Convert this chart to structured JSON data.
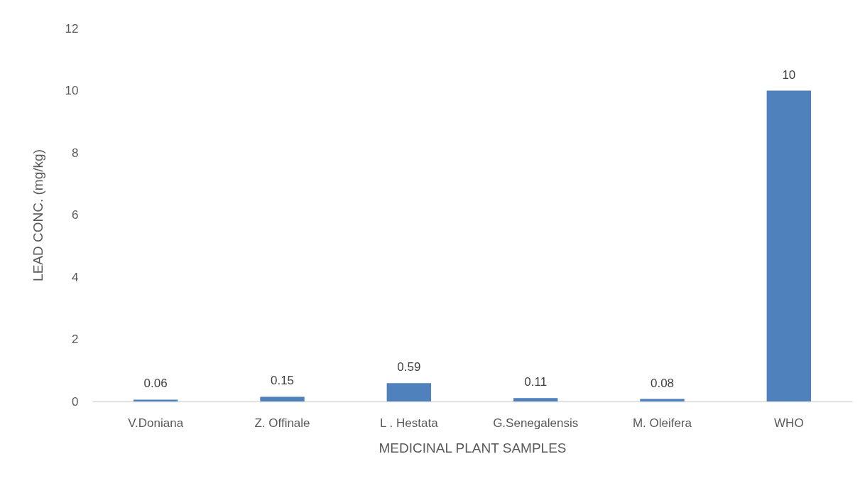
{
  "chart_data": {
    "type": "bar",
    "xlabel": "MEDICINAL PLANT SAMPLES",
    "ylabel": "LEAD CONC. (mg/kg)",
    "categories": [
      "V.Doniana",
      "Z. Offinale",
      "L . Hestata",
      "G.Senegalensis",
      "M. Oleifera",
      "WHO"
    ],
    "series": [
      {
        "color": "#4f81bd",
        "values": [
          0.06,
          0.15,
          0.59,
          0.11,
          0.08,
          10
        ]
      }
    ],
    "ylim": [
      0,
      12
    ],
    "yticks": [
      0,
      2,
      4,
      6,
      8,
      10,
      12
    ],
    "grid": false,
    "data_labels": true
  }
}
